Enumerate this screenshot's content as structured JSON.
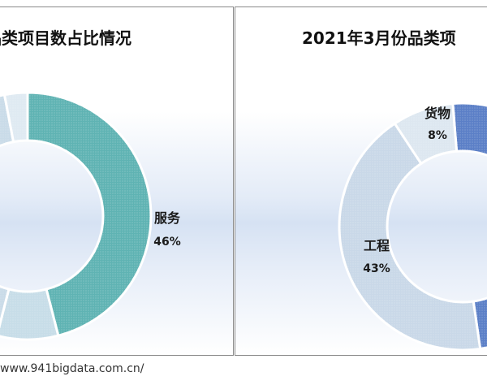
{
  "source": "www.941bigdata.com.cn/",
  "chart_data": [
    {
      "type": "donut",
      "title": "品类项目数占比情况",
      "segments": [
        {
          "name": "服务",
          "value": 46
        },
        {
          "name": "",
          "value": 8
        },
        {
          "name": "",
          "value": 43
        },
        {
          "name": "",
          "value": 3
        }
      ],
      "colors": [
        "#5fb3b3",
        "#c7dde8",
        "#c9dbe8",
        "#dfeaf2"
      ]
    },
    {
      "type": "donut",
      "title": "2021年3月份品类项",
      "segments": [
        {
          "name": "",
          "value": 49
        },
        {
          "name": "工程",
          "value": 43
        },
        {
          "name": "货物",
          "value": 8
        }
      ],
      "colors": [
        "#5b7fc7",
        "#c9d8e8",
        "#dde7f0"
      ]
    }
  ]
}
